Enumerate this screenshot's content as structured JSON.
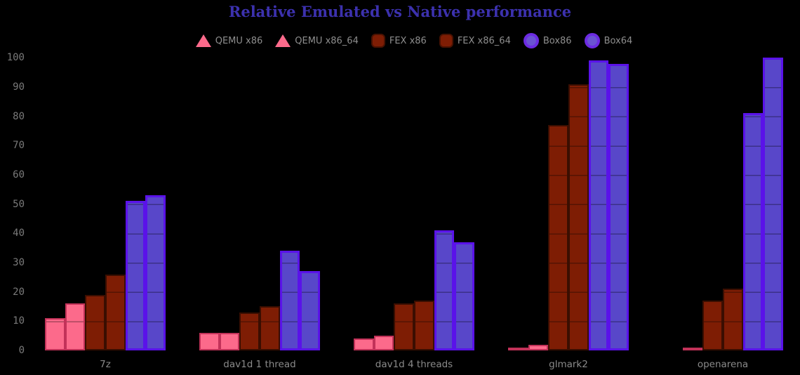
{
  "chart_data": {
    "type": "bar",
    "title": "Relative Emulated vs Native performance",
    "title_color": "#3C31AE",
    "background": "#000000",
    "tick_text_color": "#7A7A7A",
    "label_text_color": "#8A8A8A",
    "legend_text_color": "#8E8E8E",
    "legend_position": "top",
    "grid": "horizontal lines every 10, visible only across bars",
    "xlabel": "",
    "ylabel": "",
    "ylim": [
      0,
      100
    ],
    "yticks": [
      0,
      10,
      20,
      30,
      40,
      50,
      60,
      70,
      80,
      90,
      100
    ],
    "categories": [
      "7z",
      "dav1d 1 thread",
      "dav1d 4 threads",
      "glmark2",
      "openarena"
    ],
    "series": [
      {
        "name": "QEMU x86",
        "marker": "triangle",
        "fill": "#FC6A8B",
        "border": "#C23259",
        "values": [
          11,
          6,
          4,
          1,
          0
        ]
      },
      {
        "name": "QEMU x86_64",
        "marker": "triangle",
        "fill": "#FC6A8B",
        "border": "#C23259",
        "values": [
          16,
          6,
          5,
          2,
          1
        ]
      },
      {
        "name": "FEX x86",
        "marker": "rounded-square",
        "fill": "#7E1D04",
        "border": "#3A0E01",
        "values": [
          19,
          13,
          16,
          77,
          17
        ]
      },
      {
        "name": "FEX x86_64",
        "marker": "rounded-square",
        "fill": "#7E1D04",
        "border": "#3A0E01",
        "values": [
          26,
          15,
          17,
          91,
          21
        ]
      },
      {
        "name": "Box86",
        "marker": "circle",
        "fill": "#5847C9",
        "border": "#5A12E9",
        "values": [
          51,
          34,
          41,
          99,
          81
        ]
      },
      {
        "name": "Box64",
        "marker": "circle",
        "fill": "#5847C9",
        "border": "#5A12E9",
        "values": [
          53,
          27,
          37,
          98,
          100
        ]
      }
    ]
  }
}
